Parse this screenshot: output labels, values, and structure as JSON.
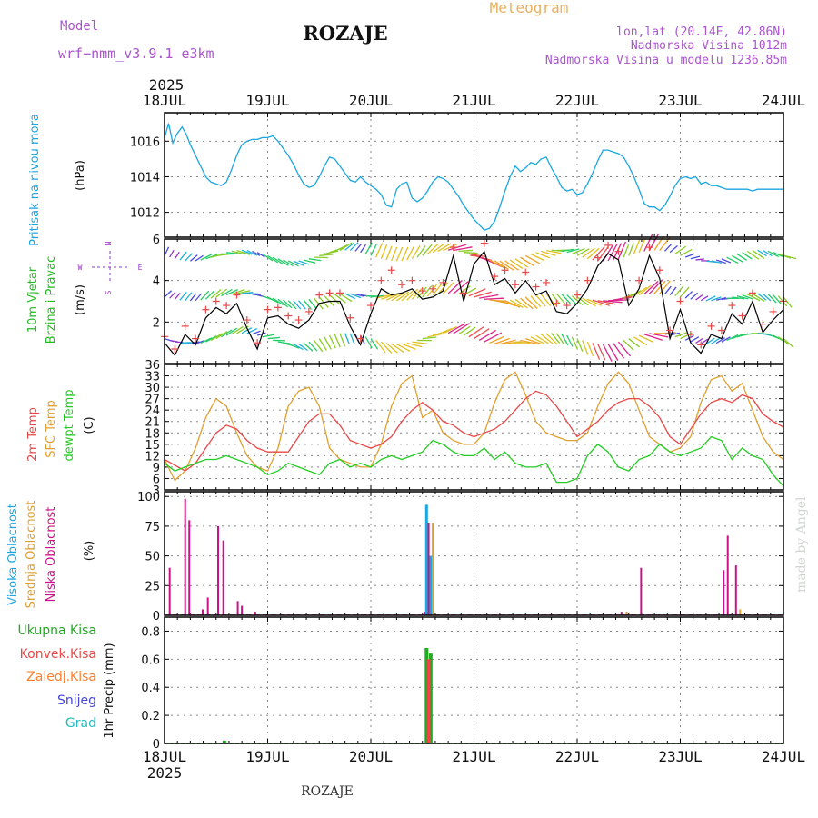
{
  "header": {
    "model_label": "Model",
    "model_name": "wrf−nmm_v3.9.1  e3km",
    "station": "ROZAJE",
    "product": "Meteogram",
    "lonlat": "lon,lat (20.14E, 42.86N)",
    "elevation": "Nadmorska Visina 1012m",
    "model_elevation": "Nadmorska Visina u modelu 1236.85m",
    "year_top": "2025",
    "year_bottom": "2025",
    "footer_station": "ROZAJE",
    "watermark": "made by Angel"
  },
  "colors": {
    "pressure": "#1aa6e0",
    "wind_label": "#22bb22",
    "compass": "#9933cc",
    "temp2m": "#e84848",
    "sfc_temp": "#e0a030",
    "dewpoint": "#22cc22",
    "cloud_high": "#1aa6e0",
    "cloud_mid": "#e0a030",
    "cloud_low": "#cc1188",
    "precip_total": "#22aa22",
    "precip_conv": "#e84848",
    "precip_frozen": "#ff7f2a",
    "precip_snow": "#4444dd",
    "precip_graupel": "#22bbbb",
    "header_purple": "#aa55cc",
    "header_orange": "#e8b060"
  },
  "chart_data": [
    {
      "id": "pressure",
      "type": "line",
      "title": "Pritisak na nivou mora",
      "ylabel": "(hPa)",
      "x_ticks": [
        "18JUL",
        "19JUL",
        "20JUL",
        "21JUL",
        "22JUL",
        "23JUL",
        "24JUL"
      ],
      "ylim": [
        1010.6,
        1017.6
      ],
      "y_ticks": [
        "1012",
        "1014",
        "1016"
      ],
      "series": [
        {
          "name": "Pritisak",
          "x_days": [
            0,
            0.04,
            0.08,
            0.12,
            0.17,
            0.21,
            0.25,
            0.3,
            0.35,
            0.4,
            0.45,
            0.5,
            0.55,
            0.6,
            0.65,
            0.7,
            0.75,
            0.8,
            0.85,
            0.9,
            0.95,
            1.0,
            1.05,
            1.1,
            1.15,
            1.2,
            1.25,
            1.3,
            1.35,
            1.4,
            1.45,
            1.5,
            1.55,
            1.6,
            1.65,
            1.7,
            1.75,
            1.8,
            1.85,
            1.9,
            1.95,
            2.0,
            2.05,
            2.1,
            2.15,
            2.2,
            2.25,
            2.3,
            2.35,
            2.4,
            2.45,
            2.5,
            2.55,
            2.6,
            2.65,
            2.7,
            2.75,
            2.8,
            2.85,
            2.9,
            2.95,
            3.0,
            3.05,
            3.1,
            3.15,
            3.2,
            3.25,
            3.3,
            3.35,
            3.4,
            3.45,
            3.5,
            3.55,
            3.6,
            3.65,
            3.7,
            3.75,
            3.8,
            3.85,
            3.9,
            3.95,
            4.0,
            4.05,
            4.1,
            4.15,
            4.2,
            4.25,
            4.3,
            4.35,
            4.4,
            4.45,
            4.5,
            4.55,
            4.6,
            4.65,
            4.7,
            4.75,
            4.8,
            4.85,
            4.9,
            4.95,
            5.0,
            5.05,
            5.1,
            5.15,
            5.2,
            5.25,
            5.3,
            5.35,
            5.4,
            5.45,
            5.5,
            5.55,
            5.6,
            5.65,
            5.7,
            5.75,
            5.8,
            5.85,
            5.9,
            5.95,
            6.0
          ],
          "values": [
            1016.2,
            1017.0,
            1015.9,
            1016.4,
            1016.8,
            1016.4,
            1015.8,
            1015.2,
            1014.6,
            1014.0,
            1013.7,
            1013.6,
            1013.5,
            1013.7,
            1014.4,
            1015.2,
            1015.8,
            1016.0,
            1016.1,
            1016.1,
            1016.2,
            1016.2,
            1016.3,
            1016.0,
            1015.6,
            1015.2,
            1014.7,
            1014.1,
            1013.6,
            1013.4,
            1013.5,
            1014.0,
            1014.6,
            1015.1,
            1015.0,
            1014.6,
            1014.2,
            1013.8,
            1013.7,
            1014.0,
            1013.7,
            1013.5,
            1013.3,
            1013.0,
            1012.4,
            1012.3,
            1013.3,
            1013.6,
            1013.7,
            1012.8,
            1012.6,
            1012.8,
            1013.2,
            1013.7,
            1014.0,
            1013.9,
            1013.7,
            1013.3,
            1012.9,
            1012.4,
            1012.0,
            1011.6,
            1011.3,
            1011.0,
            1011.1,
            1011.5,
            1012.3,
            1013.2,
            1014.0,
            1014.6,
            1014.3,
            1014.5,
            1014.8,
            1014.7,
            1015.0,
            1015.1,
            1014.5,
            1014.0,
            1013.4,
            1013.2,
            1013.3,
            1013.0,
            1013.1,
            1013.6,
            1014.2,
            1014.9,
            1015.5,
            1015.5,
            1015.4,
            1015.3,
            1015.1,
            1014.6,
            1014.0,
            1013.3,
            1012.5,
            1012.3,
            1012.3,
            1012.1,
            1012.4,
            1012.9,
            1013.5,
            1013.9,
            1014.0,
            1013.9,
            1014.0,
            1013.6,
            1013.7,
            1013.5,
            1013.5,
            1013.4,
            1013.3,
            1013.3,
            1013.3,
            1013.3,
            1013.3,
            1013.2,
            1013.3,
            1013.3,
            1013.3,
            1013.3,
            1013.3,
            1013.3
          ]
        }
      ]
    },
    {
      "id": "wind",
      "type": "line",
      "title": "10m Vjetar",
      "subtitle": "Brzina i Pravac",
      "ylabel": "(m/s)",
      "compass": {
        "n": "N",
        "s": "S",
        "e": "E",
        "w": "W"
      },
      "ylim": [
        0,
        6
      ],
      "y_ticks": [
        "2",
        "4",
        "6"
      ],
      "series": [
        {
          "name": "Brzina vjetra",
          "x_days": [
            0,
            0.1,
            0.2,
            0.3,
            0.4,
            0.5,
            0.6,
            0.7,
            0.8,
            0.9,
            1.0,
            1.1,
            1.2,
            1.3,
            1.4,
            1.5,
            1.6,
            1.7,
            1.8,
            1.9,
            2.0,
            2.1,
            2.2,
            2.3,
            2.4,
            2.5,
            2.6,
            2.7,
            2.8,
            2.9,
            3.0,
            3.1,
            3.2,
            3.3,
            3.4,
            3.5,
            3.6,
            3.7,
            3.8,
            3.9,
            4.0,
            4.1,
            4.2,
            4.3,
            4.4,
            4.5,
            4.6,
            4.7,
            4.8,
            4.9,
            5.0,
            5.1,
            5.2,
            5.3,
            5.4,
            5.5,
            5.6,
            5.7,
            5.8,
            5.9,
            6.0
          ],
          "values": [
            1.0,
            0.4,
            1.4,
            0.9,
            2.2,
            2.7,
            2.4,
            2.9,
            1.7,
            0.7,
            2.2,
            2.3,
            1.9,
            1.7,
            2.1,
            2.9,
            3.0,
            3.0,
            1.8,
            0.9,
            2.4,
            3.6,
            3.3,
            3.4,
            3.6,
            3.1,
            3.2,
            3.5,
            5.2,
            3.0,
            4.8,
            5.4,
            3.8,
            4.1,
            3.4,
            4.0,
            3.3,
            3.5,
            2.5,
            2.4,
            2.9,
            3.6,
            4.7,
            5.3,
            5.0,
            2.8,
            3.6,
            5.2,
            4.1,
            1.2,
            2.6,
            1.0,
            0.5,
            1.4,
            1.2,
            2.4,
            1.9,
            3.0,
            1.5,
            2.1,
            2.6
          ]
        },
        {
          "name": "Udari vjetra",
          "x_days": [
            0,
            0.1,
            0.2,
            0.3,
            0.4,
            0.5,
            0.6,
            0.7,
            0.8,
            0.9,
            1.0,
            1.1,
            1.2,
            1.3,
            1.4,
            1.5,
            1.6,
            1.7,
            1.8,
            1.9,
            2.0,
            2.1,
            2.2,
            2.3,
            2.4,
            2.5,
            2.6,
            2.7,
            2.8,
            2.9,
            3.0,
            3.1,
            3.2,
            3.3,
            3.4,
            3.5,
            3.6,
            3.7,
            3.8,
            3.9,
            4.0,
            4.1,
            4.2,
            4.3,
            4.4,
            4.5,
            4.6,
            4.7,
            4.8,
            4.9,
            5.0,
            5.1,
            5.2,
            5.3,
            5.4,
            5.5,
            5.6,
            5.7,
            5.8,
            5.9,
            6.0
          ],
          "values": [
            1.3,
            0.7,
            1.8,
            1.2,
            2.6,
            3.0,
            2.8,
            3.3,
            2.1,
            1.0,
            2.6,
            2.7,
            2.3,
            2.1,
            2.5,
            3.3,
            3.4,
            3.4,
            2.2,
            1.2,
            2.8,
            4.0,
            4.5,
            3.8,
            4.0,
            3.5,
            3.6,
            3.9,
            5.6,
            3.4,
            5.2,
            5.8,
            4.2,
            4.5,
            3.8,
            4.4,
            3.7,
            3.9,
            2.9,
            2.8,
            3.3,
            4.0,
            5.1,
            5.7,
            5.4,
            3.2,
            4.0,
            5.6,
            4.5,
            1.6,
            3.0,
            1.4,
            0.9,
            1.8,
            1.6,
            2.8,
            2.3,
            3.4,
            1.9,
            2.5,
            3.0
          ]
        }
      ]
    },
    {
      "id": "temperature",
      "type": "line",
      "title": "2m Temp",
      "subtitle": "SFC Temp",
      "subtitle2": "dewpt Temp",
      "ylabel": "(C)",
      "ylim": [
        3,
        36
      ],
      "y_ticks": [
        "3",
        "6",
        "9",
        "12",
        "15",
        "18",
        "21",
        "24",
        "27",
        "30",
        "33",
        "36"
      ],
      "series": [
        {
          "name": "2m Temp",
          "x_days": [
            0,
            0.1,
            0.2,
            0.3,
            0.4,
            0.5,
            0.6,
            0.7,
            0.8,
            0.9,
            1.0,
            1.1,
            1.2,
            1.3,
            1.4,
            1.5,
            1.6,
            1.7,
            1.8,
            1.9,
            2.0,
            2.1,
            2.2,
            2.3,
            2.4,
            2.5,
            2.6,
            2.7,
            2.8,
            2.9,
            3.0,
            3.1,
            3.2,
            3.3,
            3.4,
            3.5,
            3.6,
            3.7,
            3.8,
            3.9,
            4.0,
            4.1,
            4.2,
            4.3,
            4.4,
            4.5,
            4.6,
            4.7,
            4.8,
            4.9,
            5.0,
            5.1,
            5.2,
            5.3,
            5.4,
            5.5,
            5.6,
            5.7,
            5.8,
            5.9,
            6.0
          ],
          "values": [
            11,
            9.5,
            8,
            10,
            14,
            18,
            20,
            19,
            16,
            14,
            13,
            13,
            13,
            17,
            21,
            23,
            23,
            20,
            16,
            15,
            14,
            15,
            17,
            21,
            24,
            26,
            24,
            21,
            20,
            18,
            17,
            18,
            19,
            21,
            24,
            27,
            29,
            28,
            25,
            21,
            17,
            19,
            21,
            24,
            26,
            27,
            27,
            25,
            22,
            17,
            15,
            19,
            23,
            26,
            27,
            26,
            28,
            27,
            23,
            21,
            19.5
          ]
        },
        {
          "name": "SFC Temp",
          "x_days": [
            0,
            0.1,
            0.2,
            0.3,
            0.4,
            0.5,
            0.6,
            0.7,
            0.8,
            0.9,
            1.0,
            1.1,
            1.2,
            1.3,
            1.4,
            1.5,
            1.6,
            1.7,
            1.8,
            1.9,
            2.0,
            2.1,
            2.2,
            2.3,
            2.4,
            2.5,
            2.6,
            2.7,
            2.8,
            2.9,
            3.0,
            3.1,
            3.2,
            3.3,
            3.4,
            3.5,
            3.6,
            3.7,
            3.8,
            3.9,
            4.0,
            4.1,
            4.2,
            4.3,
            4.4,
            4.5,
            4.6,
            4.7,
            4.8,
            4.9,
            5.0,
            5.1,
            5.2,
            5.3,
            5.4,
            5.5,
            5.6,
            5.7,
            5.8,
            5.9,
            6.0
          ],
          "values": [
            11,
            5.5,
            8,
            14,
            22,
            27,
            25,
            18,
            12,
            9,
            8,
            14,
            25,
            29,
            30,
            25,
            14,
            11,
            10,
            9,
            9,
            15,
            25,
            31,
            33,
            22,
            24,
            18,
            16,
            15,
            15,
            18,
            26,
            32,
            34,
            28,
            21,
            18,
            17,
            16,
            16,
            18,
            25,
            31,
            34,
            31,
            24,
            17,
            15,
            13,
            14,
            17,
            26,
            32,
            33,
            29,
            31,
            24,
            17,
            13,
            11
          ]
        },
        {
          "name": "dewpt Temp",
          "x_days": [
            0,
            0.1,
            0.2,
            0.3,
            0.4,
            0.5,
            0.6,
            0.7,
            0.8,
            0.9,
            1.0,
            1.1,
            1.2,
            1.3,
            1.4,
            1.5,
            1.6,
            1.7,
            1.8,
            1.9,
            2.0,
            2.1,
            2.2,
            2.3,
            2.4,
            2.5,
            2.6,
            2.7,
            2.8,
            2.9,
            3.0,
            3.1,
            3.2,
            3.3,
            3.4,
            3.5,
            3.6,
            3.7,
            3.8,
            3.9,
            4.0,
            4.1,
            4.2,
            4.3,
            4.4,
            4.5,
            4.6,
            4.7,
            4.8,
            4.9,
            5.0,
            5.1,
            5.2,
            5.3,
            5.4,
            5.5,
            5.6,
            5.7,
            5.8,
            5.9,
            6.0
          ],
          "values": [
            10,
            8,
            9,
            10,
            11,
            11,
            12,
            11,
            10,
            9,
            7,
            8,
            10,
            9,
            8,
            7,
            10,
            11,
            9,
            10,
            9,
            11,
            12,
            11,
            12,
            13,
            16,
            15,
            13,
            12,
            12,
            14,
            11,
            13,
            10,
            9,
            9,
            10,
            5,
            5,
            6,
            12,
            15,
            13,
            9,
            8,
            11,
            12,
            15,
            13,
            12,
            13,
            14,
            17,
            16,
            11,
            14,
            12,
            11,
            7,
            4
          ]
        }
      ]
    },
    {
      "id": "clouds",
      "type": "bar",
      "title": "Visoka Oblacnost",
      "subtitle": "Srednja Oblacnost",
      "subtitle2": "Niska Oblacnost",
      "ylabel": "(%)",
      "ylim": [
        0,
        104
      ],
      "y_ticks": [
        "0",
        "25",
        "50",
        "75",
        "100"
      ],
      "series": [
        {
          "name": "Visoka Oblacnost",
          "x_days": [
            2.54,
            2.58
          ],
          "values": [
            93,
            50
          ]
        },
        {
          "name": "Srednja Oblacnost",
          "x_days": [
            2.56,
            2.6,
            5.58,
            4.48
          ],
          "values": [
            78,
            78,
            5,
            3
          ]
        },
        {
          "name": "Niska Oblacnost",
          "x_days": [
            0.05,
            0.2,
            0.24,
            0.37,
            0.42,
            0.52,
            0.57,
            0.71,
            0.75,
            0.88,
            2.52,
            2.56,
            4.43,
            4.62,
            5.42,
            5.46,
            5.54
          ],
          "values": [
            40,
            98,
            80,
            5,
            15,
            75,
            63,
            12,
            8,
            3,
            3,
            78,
            3,
            40,
            38,
            67,
            42
          ]
        }
      ]
    },
    {
      "id": "precip",
      "type": "bar",
      "title": "Ukupna Kisa",
      "subtitle": "Konvek.Kisa",
      "subtitle2": "Zaledj.Kisa",
      "subtitle3": "Snijeg",
      "subtitle4": "Grad",
      "ylabel": "1hr Precip (mm)",
      "ylim": [
        0,
        0.9
      ],
      "y_ticks": [
        "0",
        "0.2",
        "0.4",
        "0.6",
        "0.8"
      ],
      "series": [
        {
          "name": "Ukupna Kisa",
          "x_days": [
            0.58,
            2.54,
            2.58
          ],
          "values": [
            0.02,
            0.68,
            0.64
          ]
        },
        {
          "name": "Konvek.Kisa",
          "x_days": [
            2.56
          ],
          "values": [
            0.6
          ]
        }
      ]
    }
  ]
}
